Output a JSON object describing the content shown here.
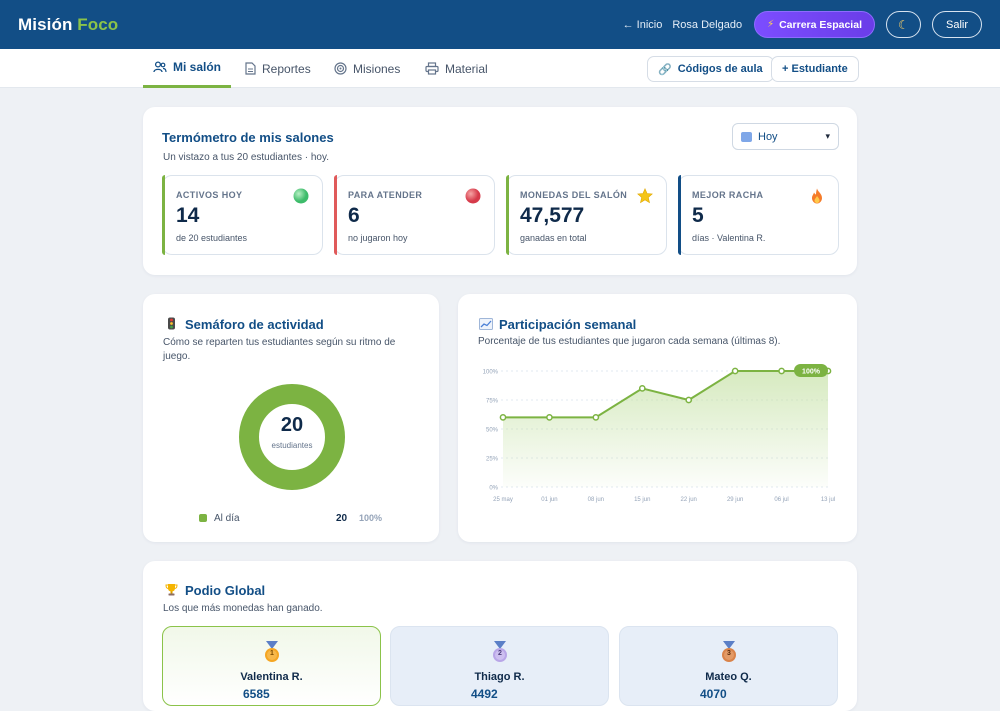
{
  "header": {
    "brand_main": "Misión",
    "brand_accent": "Foco",
    "back_link": "← Inicio",
    "user_name": "Rosa Delgado",
    "race_button": "Carrera Espacial",
    "exit_button": "Salir"
  },
  "tabs": [
    {
      "label": "Mi salón",
      "icon": "people-icon",
      "active": true
    },
    {
      "label": "Reportes",
      "icon": "document-icon",
      "active": false
    },
    {
      "label": "Misiones",
      "icon": "target-icon",
      "active": false
    },
    {
      "label": "Material",
      "icon": "printer-icon",
      "active": false
    }
  ],
  "actions": {
    "codes_button": "Códigos de aula",
    "add_student_button": "+ Estudiante"
  },
  "thermometer": {
    "title": "Termómetro de mis salones",
    "subtitle": "Un vistazo a tus 20 estudiantes · hoy.",
    "period_select": "Hoy",
    "stats": [
      {
        "label": "ACTIVOS HOY",
        "value": "14",
        "note": "de 20 estudiantes",
        "color": "#7cb342",
        "icon": "green-circle-icon"
      },
      {
        "label": "PARA ATENDER",
        "value": "6",
        "note": "no jugaron hoy",
        "color": "#e05a5a",
        "icon": "red-circle-icon"
      },
      {
        "label": "MONEDAS DEL SALÓN",
        "value": "47,577",
        "note": "ganadas en total",
        "color": "#7cb342",
        "icon": "star-icon"
      },
      {
        "label": "MEJOR RACHA",
        "value": "5",
        "note": "días · Valentina R.",
        "color": "#124e86",
        "icon": "fire-icon"
      }
    ]
  },
  "semaphore": {
    "title": "Semáforo de actividad",
    "subtitle": "Cómo se reparten tus estudiantes según su ritmo de juego.",
    "total": "20",
    "total_label": "estudiantes",
    "legend": [
      {
        "label": "Al día",
        "count": "20",
        "percent": "100%",
        "color": "#7cb342"
      }
    ]
  },
  "participation": {
    "title": "Participación semanal",
    "subtitle": "Porcentaje de tus estudiantes que jugaron cada semana (últimas 8).",
    "chart_data": {
      "type": "area",
      "categories": [
        "25 may",
        "01 jun",
        "08 jun",
        "15 jun",
        "22 jun",
        "29 jun",
        "06 jul",
        "13 jul"
      ],
      "values": [
        60,
        60,
        60,
        85,
        75,
        100,
        100,
        100
      ],
      "y_ticks": [
        "0%",
        "25%",
        "50%",
        "75%",
        "100%"
      ],
      "ylim": [
        0,
        100
      ],
      "last_label": "100%",
      "grid": true,
      "color": "#7cb342"
    }
  },
  "podium": {
    "title": "Podio Global",
    "subtitle": "Los que más monedas han ganado.",
    "entries": [
      {
        "rank": "1",
        "name": "Valentina R.",
        "coins": "6585",
        "medal_color": "#f5a623"
      },
      {
        "rank": "2",
        "name": "Thiago R.",
        "coins": "4492",
        "medal_color": "#b9a6e8"
      },
      {
        "rank": "3",
        "name": "Mateo Q.",
        "coins": "4070",
        "medal_color": "#d9834a"
      }
    ]
  }
}
